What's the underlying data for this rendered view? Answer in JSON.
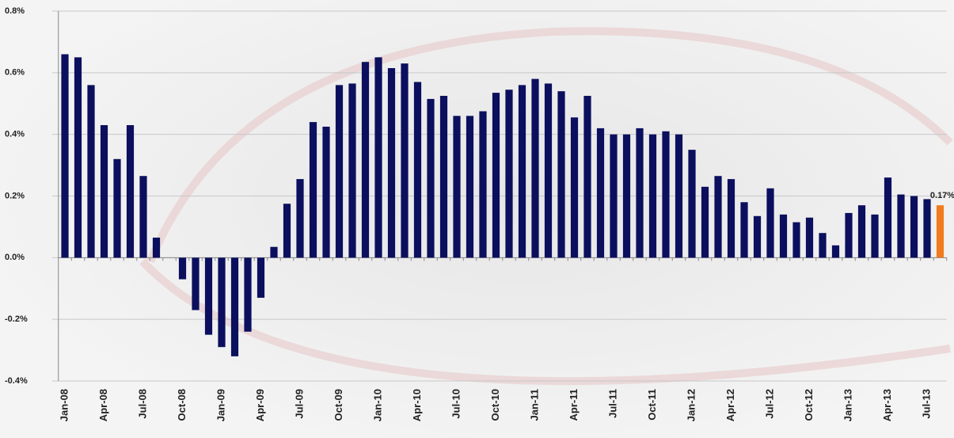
{
  "chart_data": {
    "type": "bar",
    "categories": [
      "Jan-08",
      null,
      null,
      "Apr-08",
      null,
      null,
      "Jul-08",
      null,
      null,
      "Oct-08",
      null,
      null,
      "Jan-09",
      null,
      null,
      "Apr-09",
      null,
      null,
      "Jul-09",
      null,
      null,
      "Oct-09",
      null,
      null,
      "Jan-10",
      null,
      null,
      "Apr-10",
      null,
      null,
      "Jul-10",
      null,
      null,
      "Oct-10",
      null,
      null,
      "Jan-11",
      null,
      null,
      "Apr-11",
      null,
      null,
      "Jul-11",
      null,
      null,
      "Oct-11",
      null,
      null,
      "Jan-12",
      null,
      null,
      "Apr-12",
      null,
      null,
      "Jul-12",
      null,
      null,
      "Oct-12",
      null,
      null,
      "Jan-13",
      null,
      null,
      "Apr-13",
      null,
      null,
      "Jul-13",
      null
    ],
    "values": [
      0.66,
      0.65,
      0.56,
      0.43,
      0.32,
      0.43,
      0.265,
      0.065,
      0,
      -0.07,
      -0.17,
      -0.25,
      -0.29,
      -0.32,
      -0.24,
      -0.13,
      0.035,
      0.175,
      0.255,
      0.44,
      0.425,
      0.56,
      0.565,
      0.635,
      0.65,
      0.615,
      0.63,
      0.57,
      0.515,
      0.525,
      0.46,
      0.46,
      0.475,
      0.535,
      0.545,
      0.56,
      0.58,
      0.565,
      0.54,
      0.455,
      0.525,
      0.42,
      0.4,
      0.4,
      0.42,
      0.4,
      0.41,
      0.4,
      0.35,
      0.23,
      0.265,
      0.255,
      0.18,
      0.135,
      0.225,
      0.14,
      0.115,
      0.13,
      0.08,
      0.04,
      0.145,
      0.17,
      0.14,
      0.26,
      0.205,
      0.2,
      0.19,
      0.17
    ],
    "value_labels": [
      null,
      null,
      null,
      null,
      null,
      null,
      null,
      null,
      null,
      null,
      null,
      null,
      null,
      null,
      null,
      null,
      null,
      null,
      null,
      null,
      null,
      null,
      null,
      null,
      null,
      null,
      null,
      null,
      null,
      null,
      null,
      null,
      null,
      null,
      null,
      null,
      null,
      null,
      null,
      null,
      null,
      null,
      null,
      null,
      null,
      null,
      null,
      null,
      null,
      null,
      null,
      null,
      null,
      null,
      null,
      null,
      null,
      null,
      null,
      null,
      null,
      null,
      null,
      null,
      null,
      null,
      null,
      "0.17%"
    ],
    "color": "#0b0f5e",
    "highlight_color": "#f07c1c",
    "highlight": [
      67
    ],
    "ylim": [
      -0.4,
      0.8
    ],
    "yticks": [
      {
        "value": -0.4,
        "label": "-0.4%"
      },
      {
        "value": -0.2,
        "label": "-0.2%"
      },
      {
        "value": 0,
        "label": "0.0%"
      },
      {
        "value": 0.2,
        "label": "0.2%"
      },
      {
        "value": 0.4,
        "label": "0.4%"
      },
      {
        "value": 0.6,
        "label": "0.6%"
      },
      {
        "value": 0.8,
        "label": "0.8%"
      }
    ],
    "grid": true
  }
}
